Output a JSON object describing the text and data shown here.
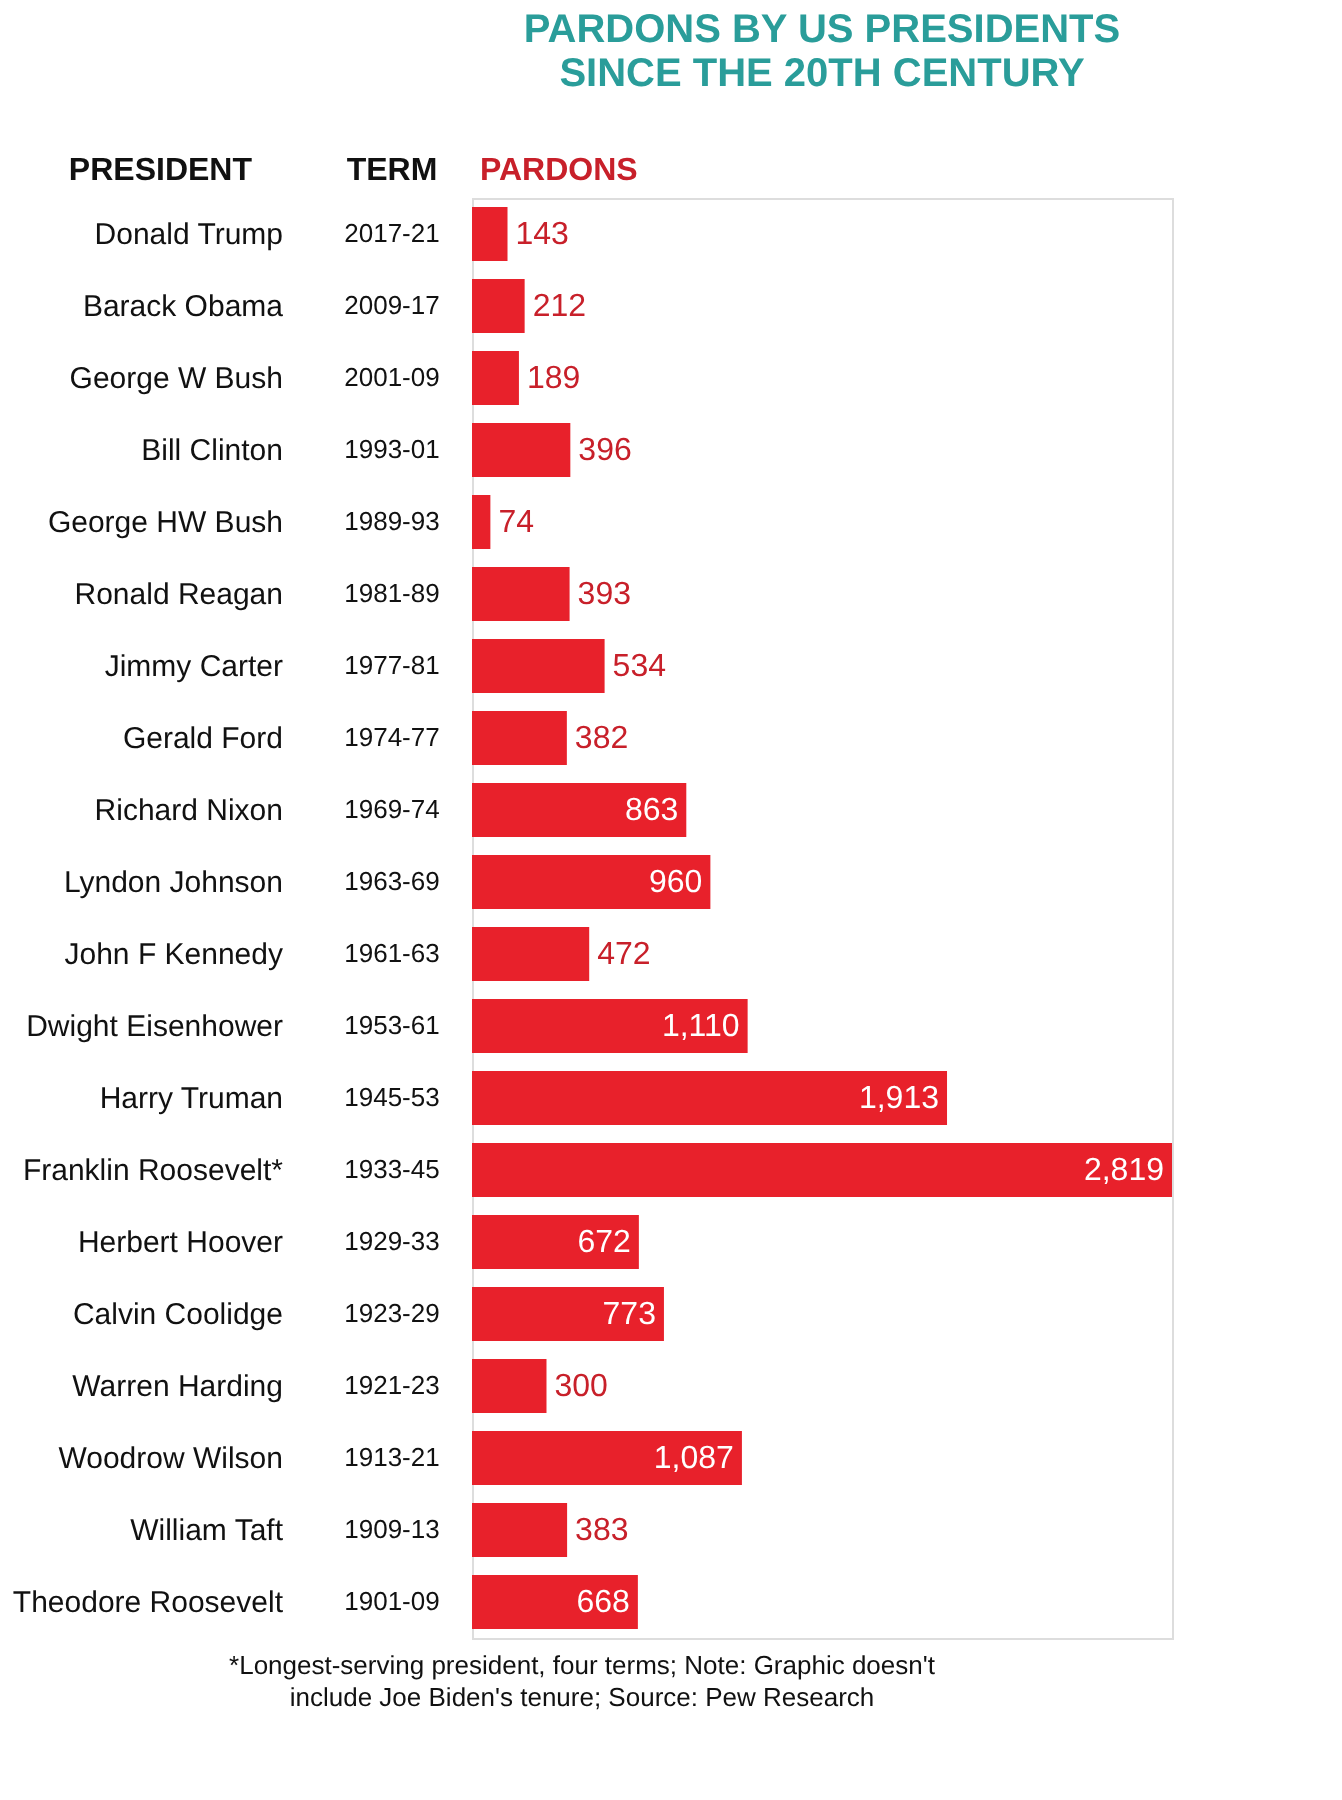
{
  "chart_data": {
    "type": "bar",
    "orientation": "horizontal",
    "title": [
      "PARDONS BY US PRESIDENTS",
      "SINCE THE 20TH CENTURY"
    ],
    "ylabel": "PRESIDENT",
    "xlabel": "PARDONS",
    "categories": [
      "Donald Trump",
      "Barack Obama",
      "George W Bush",
      "Bill Clinton",
      "George HW Bush",
      "Ronald Reagan",
      "Jimmy Carter",
      "Gerald Ford",
      "Richard Nixon",
      "Lyndon Johnson",
      "John F Kennedy",
      "Dwight Eisenhower",
      "Harry Truman",
      "Franklin Roosevelt*",
      "Herbert Hoover",
      "Calvin Coolidge",
      "Warren Harding",
      "Woodrow Wilson",
      "William Taft",
      "Theodore Roosevelt"
    ],
    "values": [
      143,
      212,
      189,
      396,
      74,
      393,
      534,
      382,
      863,
      960,
      472,
      1110,
      1913,
      2819,
      672,
      773,
      300,
      1087,
      383,
      668
    ],
    "value_labels": [
      "143",
      "212",
      "189",
      "396",
      "74",
      "393",
      "534",
      "382",
      "863",
      "960",
      "472",
      "1,110",
      "1,913",
      "2,819",
      "672",
      "773",
      "300",
      "1,087",
      "383",
      "668"
    ],
    "color": "#e8212b",
    "annotations": [
      "TERM",
      "2017-21",
      "2009-17",
      "2001-09",
      "1993-01",
      "1989-93",
      "1981-89",
      "1977-81",
      "1974-77",
      "1969-74",
      "1963-69",
      "1961-63",
      "1953-61",
      "1945-53",
      "1933-45",
      "1929-33",
      "1923-29",
      "1921-23",
      "1913-21",
      "1909-13",
      "1901-09",
      "*Longest-serving president, four terms; Note: Graphic doesn't include Joe Biden's tenure; Source: Pew Research"
    ],
    "grid": false
  }
}
